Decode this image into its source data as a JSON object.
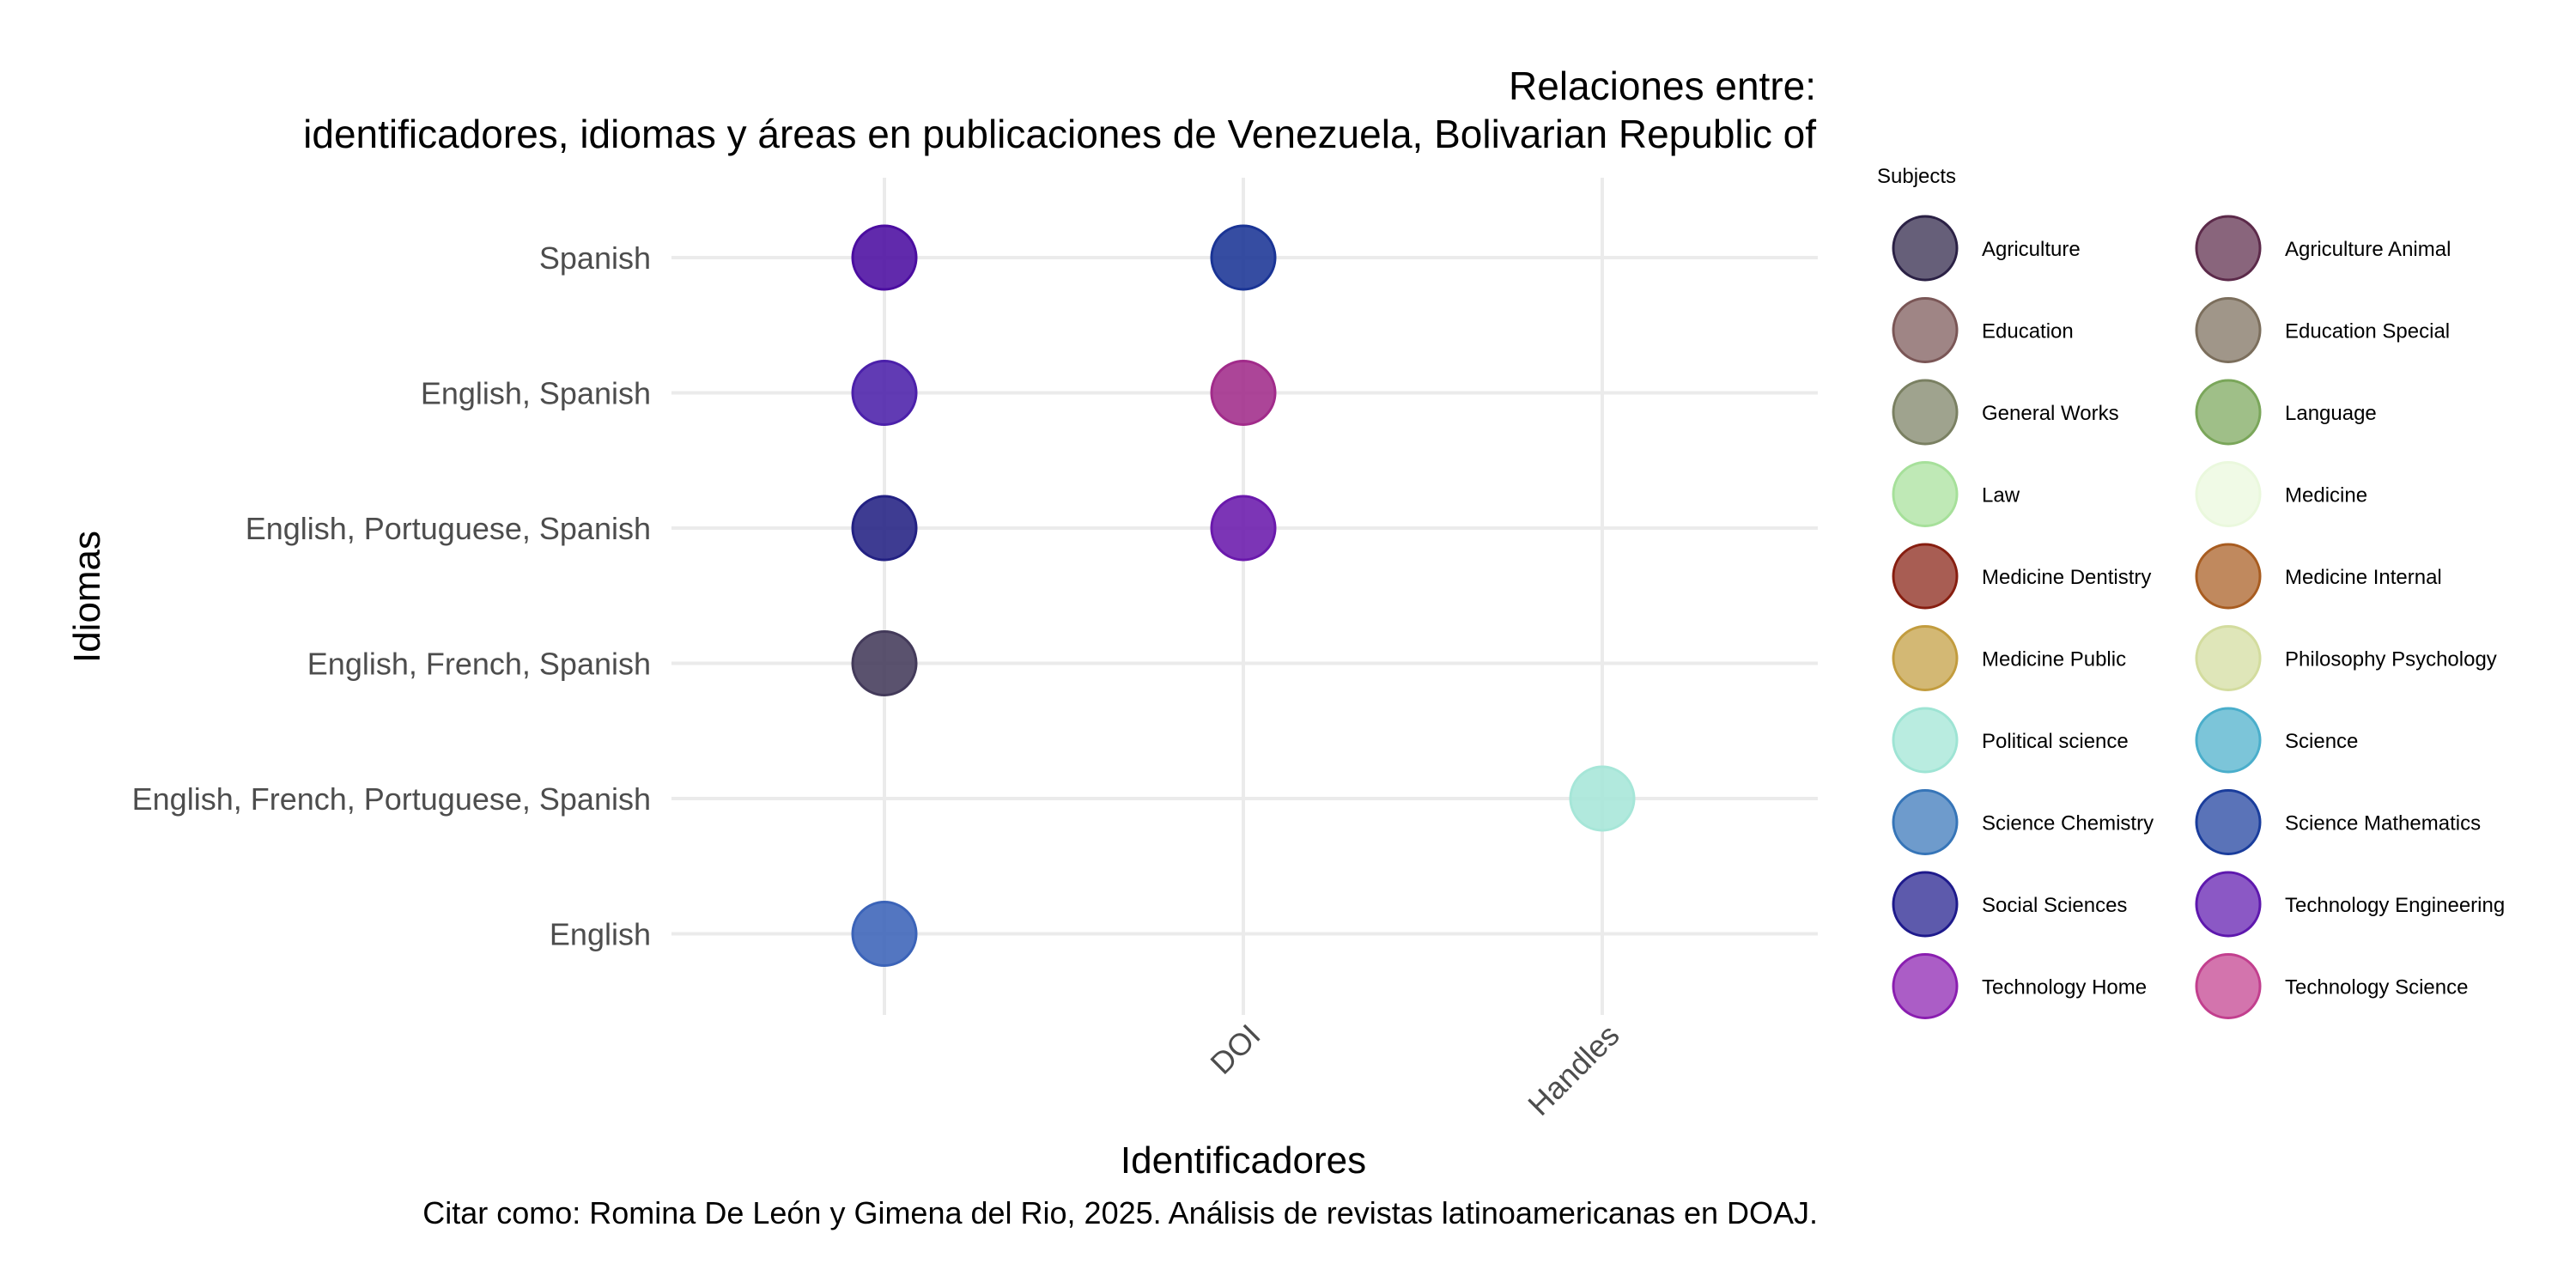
{
  "chart_data": {
    "type": "scatter",
    "title": "Relaciones entre:",
    "subtitle": "identificadores, idiomas y áreas en publicaciones de Venezuela, Bolivarian Republic of",
    "xlabel": "Identificadores",
    "ylabel": "Idiomas",
    "caption": "Citar como: Romina De León y Gimena del Rio, 2025. Análisis de revistas latinoamericanas en DOAJ.",
    "x_categories": [
      "",
      "DOI",
      "Handles"
    ],
    "y_categories": [
      "Spanish",
      "English, Spanish",
      "English, Portuguese, Spanish",
      "English, French, Spanish",
      "English, French, Portuguese, Spanish",
      "English"
    ],
    "grid": true,
    "legend": {
      "title": "Subjects",
      "position": "right",
      "columns": 2,
      "items": [
        {
          "label": "Agriculture",
          "color": "#2b2145"
        },
        {
          "label": "Agriculture Animal",
          "color": "#5c2a4a"
        },
        {
          "label": "Education",
          "color": "#7a5656"
        },
        {
          "label": "Education Special",
          "color": "#7b6e5c"
        },
        {
          "label": "General Works",
          "color": "#7a8062"
        },
        {
          "label": "Language",
          "color": "#7aa65a"
        },
        {
          "label": "Law",
          "color": "#a6e09a"
        },
        {
          "label": "Medicine",
          "color": "#eaf8dd"
        },
        {
          "label": "Medicine Dentistry",
          "color": "#871e10"
        },
        {
          "label": "Medicine Internal",
          "color": "#a85c20"
        },
        {
          "label": "Medicine Public",
          "color": "#c29c3e"
        },
        {
          "label": "Philosophy Psychology",
          "color": "#d3dc9e"
        },
        {
          "label": "Political science",
          "color": "#9ee4d4"
        },
        {
          "label": "Science",
          "color": "#4aaecb"
        },
        {
          "label": "Science Chemistry",
          "color": "#3675b8"
        },
        {
          "label": "Science Mathematics",
          "color": "#1a3d9c"
        },
        {
          "label": "Social Sciences",
          "color": "#1e1a8c"
        },
        {
          "label": "Technology Engineering",
          "color": "#5e18ae"
        },
        {
          "label": "Technology Home",
          "color": "#8a1eb0"
        },
        {
          "label": "Technology Science",
          "color": "#c23f8e"
        }
      ]
    },
    "points": [
      {
        "x": "",
        "y": "Spanish",
        "color": "#4b0da0"
      },
      {
        "x": "DOI",
        "y": "Spanish",
        "color": "#1a3495"
      },
      {
        "x": "",
        "y": "English, Spanish",
        "color": "#4b20aa"
      },
      {
        "x": "DOI",
        "y": "English, Spanish",
        "color": "#a12b8a"
      },
      {
        "x": "",
        "y": "English, Portuguese, Spanish",
        "color": "#232183"
      },
      {
        "x": "DOI",
        "y": "English, Portuguese, Spanish",
        "color": "#6a19ac"
      },
      {
        "x": "",
        "y": "English, French, Spanish",
        "color": "#433a5a"
      },
      {
        "x": "Handles",
        "y": "English, French, Portuguese, Spanish",
        "color": "#a6e6d8"
      },
      {
        "x": "",
        "y": "English",
        "color": "#3b63b8"
      }
    ]
  }
}
